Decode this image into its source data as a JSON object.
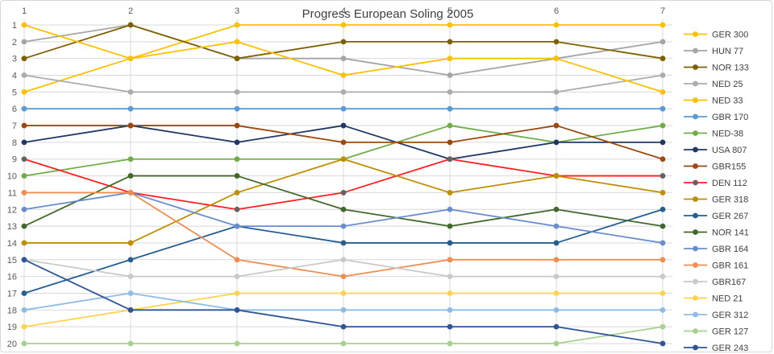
{
  "title": "Progress European Soling 2005",
  "axes": {
    "x_ticks": [
      "1",
      "2",
      "3",
      "4",
      "5",
      "6",
      "7"
    ],
    "y_ticks": [
      "1",
      "2",
      "3",
      "4",
      "5",
      "6",
      "7",
      "8",
      "9",
      "10",
      "11",
      "12",
      "13",
      "14",
      "15",
      "16",
      "17",
      "18",
      "19",
      "20"
    ]
  },
  "colors": {
    "grid": "#d9d9d9",
    "tick_text": "#595959",
    "title_text": "#3f3f3f",
    "frame_border": "#d7d7d7"
  },
  "chart_data": {
    "type": "line",
    "title": "Progress European Soling 2005",
    "x": [
      1,
      2,
      3,
      4,
      5,
      6,
      7
    ],
    "xlabel": "",
    "ylabel": "",
    "ylim": [
      1,
      20
    ],
    "y_inverted": true,
    "grid": true,
    "legend_position": "right",
    "series": [
      {
        "name": "GER 300",
        "color": "#FFC000",
        "marker": "#FFC000",
        "values": [
          5,
          3,
          1,
          1,
          1,
          1,
          1
        ]
      },
      {
        "name": "HUN 77",
        "color": "#A5A5A5",
        "marker": "#A5A5A5",
        "values": [
          2,
          1,
          3,
          3,
          4,
          3,
          2
        ]
      },
      {
        "name": "NOR 133",
        "color": "#7F6000",
        "marker": "#7F6000",
        "values": [
          3,
          1,
          3,
          2,
          2,
          2,
          3
        ]
      },
      {
        "name": "NED 25",
        "color": "#ACACAC",
        "marker": "#ACACAC",
        "values": [
          4,
          5,
          5,
          5,
          5,
          5,
          4
        ]
      },
      {
        "name": "NED 33",
        "color": "#FFC000",
        "marker": "#FFC000",
        "values": [
          1,
          3,
          2,
          4,
          3,
          3,
          5
        ]
      },
      {
        "name": "GBR 170",
        "color": "#5B9BD5",
        "marker": "#5B9BD5",
        "values": [
          6,
          6,
          6,
          6,
          6,
          6,
          6
        ]
      },
      {
        "name": "NED-38",
        "color": "#70AD47",
        "marker": "#70AD47",
        "values": [
          10,
          9,
          9,
          9,
          7,
          8,
          7
        ]
      },
      {
        "name": "USA 807",
        "color": "#1F3864",
        "marker": "#1F3864",
        "values": [
          8,
          7,
          8,
          7,
          9,
          8,
          8
        ]
      },
      {
        "name": "GBR155",
        "color": "#9E480E",
        "marker": "#9E480E",
        "values": [
          7,
          7,
          7,
          8,
          8,
          7,
          9
        ]
      },
      {
        "name": "DEN 112",
        "color": "#FF1F1F",
        "marker": "#636363",
        "values": [
          9,
          11,
          12,
          11,
          9,
          10,
          10
        ]
      },
      {
        "name": "GER 318",
        "color": "#BF8F00",
        "marker": "#BF8F00",
        "values": [
          14,
          14,
          11,
          9,
          11,
          10,
          11
        ]
      },
      {
        "name": "GER 267",
        "color": "#255E91",
        "marker": "#255E91",
        "values": [
          17,
          15,
          13,
          14,
          14,
          14,
          12
        ]
      },
      {
        "name": "NOR 141",
        "color": "#43682B",
        "marker": "#43682B",
        "values": [
          13,
          10,
          10,
          12,
          13,
          12,
          13
        ]
      },
      {
        "name": "GBR 164",
        "color": "#698ED0",
        "marker": "#698ED0",
        "values": [
          12,
          11,
          13,
          13,
          12,
          13,
          14
        ]
      },
      {
        "name": "GBR 161",
        "color": "#F08E50",
        "marker": "#F08E50",
        "values": [
          11,
          11,
          15,
          16,
          15,
          15,
          15
        ]
      },
      {
        "name": "GBR167",
        "color": "#C9C9C9",
        "marker": "#C9C9C9",
        "values": [
          15,
          16,
          16,
          15,
          16,
          16,
          16
        ]
      },
      {
        "name": "NED 21",
        "color": "#FFD34D",
        "marker": "#FFD34D",
        "values": [
          19,
          18,
          17,
          17,
          17,
          17,
          17
        ]
      },
      {
        "name": "GER 312",
        "color": "#8FBCE6",
        "marker": "#8FBCE6",
        "values": [
          18,
          17,
          18,
          18,
          18,
          18,
          18
        ]
      },
      {
        "name": "GER 127",
        "color": "#A9D18E",
        "marker": "#A9D18E",
        "values": [
          20,
          20,
          20,
          20,
          20,
          20,
          19
        ]
      },
      {
        "name": "GER 243",
        "color": "#2E5597",
        "marker": "#2E5597",
        "values": [
          15,
          18,
          18,
          19,
          19,
          19,
          20
        ]
      }
    ]
  }
}
